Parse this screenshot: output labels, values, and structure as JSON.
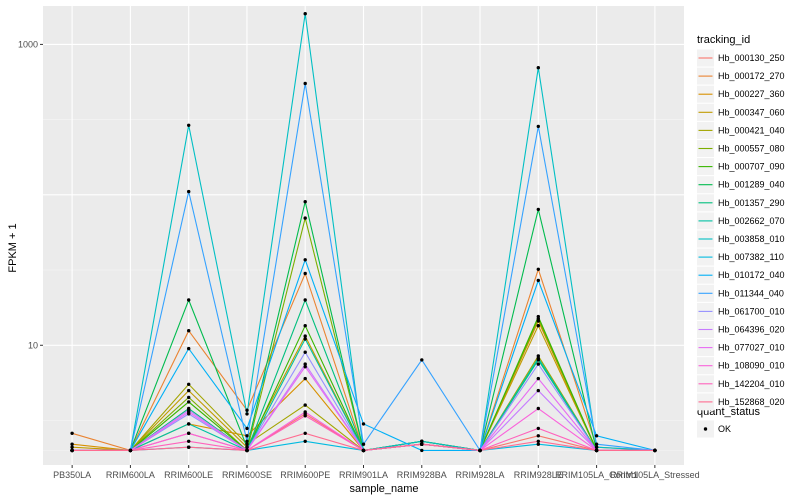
{
  "chart_data": {
    "type": "line",
    "xlabel": "sample_name",
    "ylabel": "FPKM + 1",
    "y_scale": "log10",
    "ylim": [
      1.6,
      1800
    ],
    "y_ticks": [
      10,
      1000
    ],
    "y_tick_labels": [
      "10",
      "1000"
    ],
    "categories": [
      "PB350LA",
      "RRIM600LA",
      "RRIM600LE",
      "RRIM600SE",
      "RRIM600PE",
      "RRIM901LA",
      "RRIM928BA",
      "RRIM928LA",
      "RRIM928LE",
      "RRIM105LA_Control",
      "RRIM105LA_Stressed"
    ],
    "legend_title": "tracking_id",
    "legend_position": "right",
    "shape_legend_title": "quant_status",
    "shape_legend_items": [
      "OK"
    ],
    "series": [
      {
        "name": "Hb_000130_250",
        "color": "#F8766D",
        "values": [
          2.0,
          2.0,
          2.6,
          2.0,
          3.5,
          2.0,
          2.2,
          2.0,
          2.5,
          2.0,
          2.0
        ]
      },
      {
        "name": "Hb_000172_270",
        "color": "#EA8331",
        "values": [
          2.6,
          2.0,
          12.5,
          3.7,
          30,
          2.0,
          2.3,
          2.0,
          32,
          2.1,
          2.0
        ]
      },
      {
        "name": "Hb_000227_360",
        "color": "#D89000",
        "values": [
          2.2,
          2.0,
          3.0,
          2.5,
          6.0,
          2.0,
          2.2,
          2.0,
          14.5,
          2.0,
          2.0
        ]
      },
      {
        "name": "Hb_000347_060",
        "color": "#C09B00",
        "values": [
          2.1,
          2.0,
          5.0,
          2.1,
          11.5,
          2.0,
          2.2,
          2.0,
          13.5,
          2.0,
          2.0
        ]
      },
      {
        "name": "Hb_000421_040",
        "color": "#A3A500",
        "values": [
          2.0,
          2.0,
          5.5,
          2.2,
          4.0,
          2.0,
          2.2,
          2.0,
          8.5,
          2.0,
          2.0
        ]
      },
      {
        "name": "Hb_000557_080",
        "color": "#7CAE00",
        "values": [
          2.0,
          2.0,
          4.5,
          2.0,
          70,
          2.0,
          2.3,
          2.0,
          15,
          2.0,
          2.0
        ]
      },
      {
        "name": "Hb_000707_090",
        "color": "#39B600",
        "values": [
          2.0,
          2.0,
          4.2,
          2.0,
          13.5,
          2.0,
          2.2,
          2.0,
          15.5,
          2.0,
          2.0
        ]
      },
      {
        "name": "Hb_001289_040",
        "color": "#00BB4E",
        "values": [
          2.0,
          2.0,
          20,
          2.1,
          90,
          2.0,
          2.3,
          2.0,
          80,
          2.0,
          2.0
        ]
      },
      {
        "name": "Hb_001357_290",
        "color": "#00BF7D",
        "values": [
          2.0,
          2.0,
          3.8,
          2.0,
          20,
          2.0,
          2.2,
          2.0,
          8.0,
          2.0,
          2.0
        ]
      },
      {
        "name": "Hb_002662_070",
        "color": "#00C1A3",
        "values": [
          2.0,
          2.0,
          3.0,
          2.0,
          11.0,
          2.0,
          2.2,
          2.0,
          8.2,
          2.0,
          2.0
        ]
      },
      {
        "name": "Hb_003858_010",
        "color": "#00BFC4",
        "values": [
          2.0,
          2.0,
          290,
          3.5,
          1600,
          2.0,
          2.3,
          2.0,
          700,
          2.1,
          2.0
        ]
      },
      {
        "name": "Hb_007382_110",
        "color": "#00BAE0",
        "values": [
          2.0,
          2.0,
          2.1,
          2.0,
          2.3,
          2.0,
          2.2,
          2.0,
          2.2,
          2.0,
          2.0
        ]
      },
      {
        "name": "Hb_010172_040",
        "color": "#00B0F6",
        "values": [
          2.0,
          2.0,
          9.5,
          2.8,
          37,
          3.0,
          2.0,
          2.0,
          27,
          2.5,
          2.0
        ]
      },
      {
        "name": "Hb_011344_040",
        "color": "#35A2FF",
        "values": [
          2.0,
          2.0,
          105,
          2.3,
          550,
          2.2,
          8.0,
          2.0,
          285,
          2.2,
          2.0
        ]
      },
      {
        "name": "Hb_061700_010",
        "color": "#9590FF",
        "values": [
          2.0,
          2.0,
          3.5,
          2.0,
          9.0,
          2.0,
          2.2,
          2.0,
          7.5,
          2.0,
          2.0
        ]
      },
      {
        "name": "Hb_064396_020",
        "color": "#C77CFF",
        "values": [
          2.0,
          2.0,
          3.7,
          2.0,
          7.5,
          2.0,
          2.2,
          2.0,
          5.0,
          2.0,
          2.0
        ]
      },
      {
        "name": "Hb_077027_010",
        "color": "#E76BF3",
        "values": [
          2.0,
          2.0,
          3.6,
          2.0,
          7.2,
          2.0,
          2.2,
          2.0,
          6.0,
          2.0,
          2.0
        ]
      },
      {
        "name": "Hb_108090_010",
        "color": "#FA62DB",
        "values": [
          2.0,
          2.0,
          2.6,
          2.0,
          3.6,
          2.0,
          2.2,
          2.0,
          3.8,
          2.0,
          2.0
        ]
      },
      {
        "name": "Hb_142204_010",
        "color": "#FF62BC",
        "values": [
          2.0,
          2.0,
          2.3,
          2.0,
          3.4,
          2.0,
          2.2,
          2.0,
          2.8,
          2.0,
          2.0
        ]
      },
      {
        "name": "Hb_152868_020",
        "color": "#FF6C91",
        "values": [
          2.0,
          2.0,
          2.1,
          2.0,
          2.6,
          2.0,
          2.2,
          2.0,
          2.3,
          2.0,
          2.0
        ]
      }
    ]
  }
}
